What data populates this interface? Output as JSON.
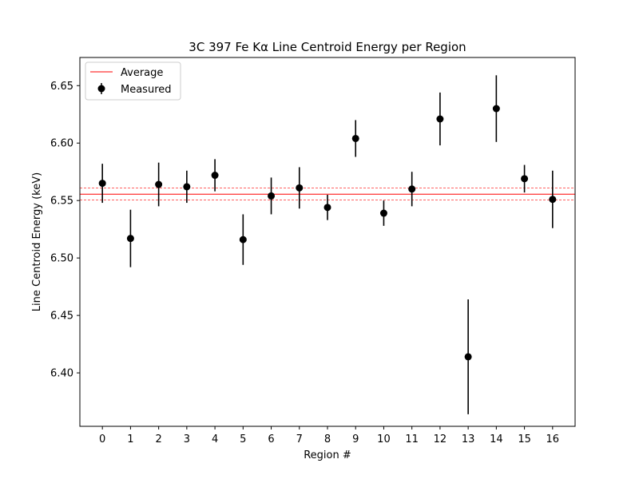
{
  "chart_data": {
    "type": "scatter",
    "title": "3C 397 Fe Kα Line Centroid Energy per Region",
    "xlabel": "Region #",
    "ylabel": "Line Centroid Energy (keV)",
    "x": [
      0,
      1,
      2,
      3,
      4,
      5,
      6,
      7,
      8,
      9,
      10,
      11,
      12,
      13,
      14,
      15,
      16
    ],
    "xlim": [
      -0.8,
      16.8
    ],
    "ylim": [
      6.3535,
      6.6745
    ],
    "xticks": [
      "0",
      "1",
      "2",
      "3",
      "4",
      "5",
      "6",
      "7",
      "8",
      "9",
      "10",
      "11",
      "12",
      "13",
      "14",
      "15",
      "16"
    ],
    "yticks": [
      {
        "value": 6.4,
        "label": "6.40"
      },
      {
        "value": 6.45,
        "label": "6.45"
      },
      {
        "value": 6.5,
        "label": "6.50"
      },
      {
        "value": 6.55,
        "label": "6.55"
      },
      {
        "value": 6.6,
        "label": "6.60"
      },
      {
        "value": 6.65,
        "label": "6.65"
      }
    ],
    "series": [
      {
        "name": "Measured",
        "color": "#000000",
        "values": [
          6.565,
          6.517,
          6.564,
          6.562,
          6.572,
          6.516,
          6.554,
          6.561,
          6.544,
          6.604,
          6.539,
          6.56,
          6.621,
          6.414,
          6.63,
          6.569,
          6.551
        ],
        "yerr": [
          0.017,
          0.025,
          0.019,
          0.014,
          0.014,
          0.022,
          0.016,
          0.018,
          0.011,
          0.016,
          0.011,
          0.015,
          0.023,
          0.05,
          0.029,
          0.012,
          0.025
        ]
      }
    ],
    "average": {
      "name": "Average",
      "value": 6.5555,
      "band": [
        6.5505,
        6.561
      ],
      "color": "#ff0000"
    },
    "legend_location": "top-left",
    "grid": false
  }
}
